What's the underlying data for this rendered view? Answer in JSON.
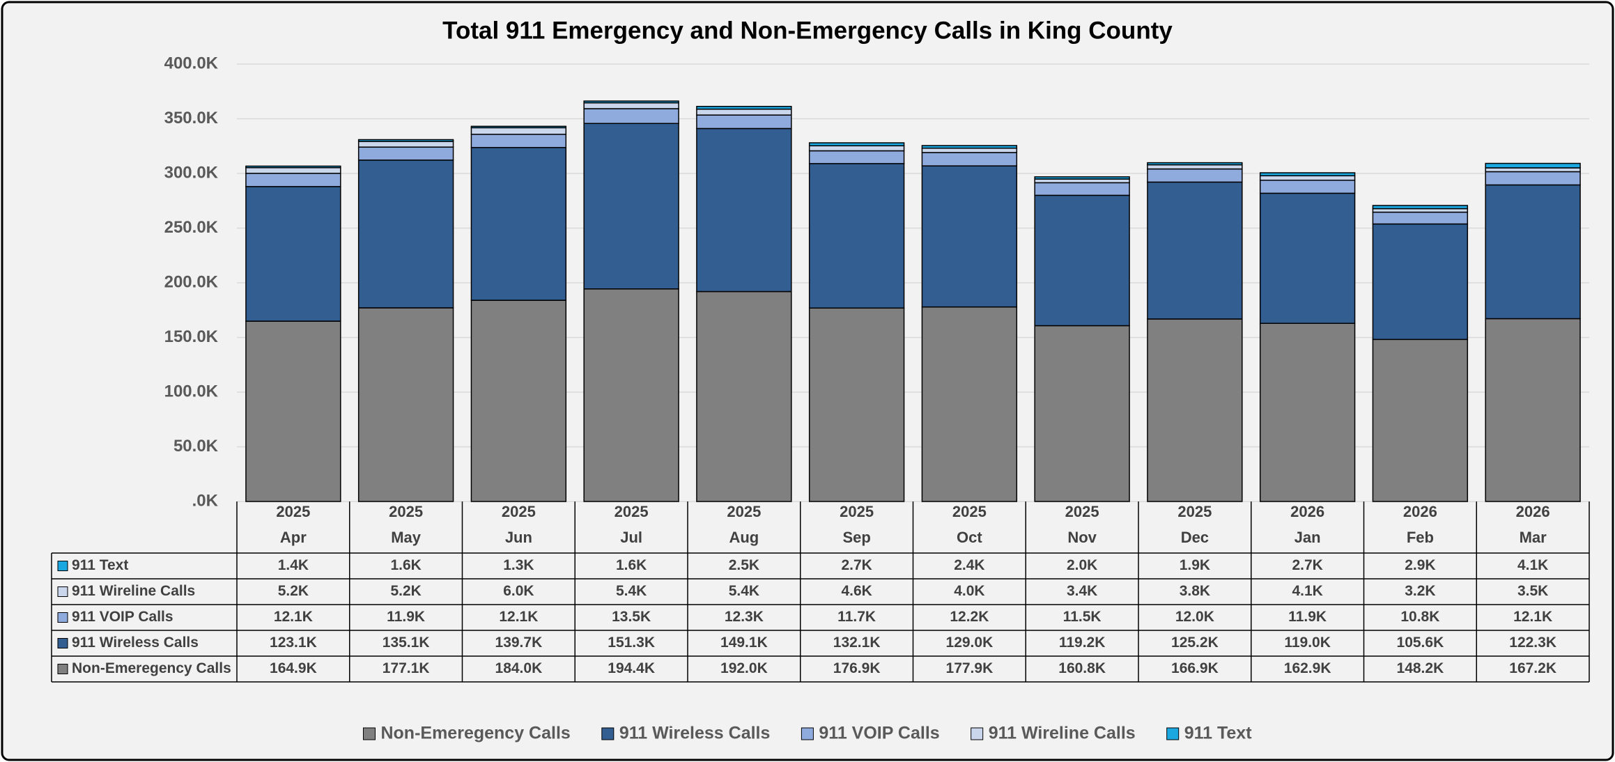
{
  "chart_data": {
    "type": "stacked_bar",
    "title": "Total 911 Emergency and Non-Emergency Calls in King County",
    "categories": [
      {
        "year": "2025",
        "month": "Apr"
      },
      {
        "year": "2025",
        "month": "May"
      },
      {
        "year": "2025",
        "month": "Jun"
      },
      {
        "year": "2025",
        "month": "Jul"
      },
      {
        "year": "2025",
        "month": "Aug"
      },
      {
        "year": "2025",
        "month": "Sep"
      },
      {
        "year": "2025",
        "month": "Oct"
      },
      {
        "year": "2025",
        "month": "Nov"
      },
      {
        "year": "2025",
        "month": "Dec"
      },
      {
        "year": "2026",
        "month": "Jan"
      },
      {
        "year": "2026",
        "month": "Feb"
      },
      {
        "year": "2026",
        "month": "Mar"
      }
    ],
    "series": [
      {
        "name": "Non-Emeregency Calls",
        "color": "#808080",
        "values": [
          164900,
          177100,
          184000,
          194400,
          192000,
          176900,
          177900,
          160800,
          166900,
          162900,
          148200,
          167200
        ],
        "value_labels": [
          "164.9K",
          "177.1K",
          "184.0K",
          "194.4K",
          "192.0K",
          "176.9K",
          "177.9K",
          "160.8K",
          "166.9K",
          "162.9K",
          "148.2K",
          "167.2K"
        ]
      },
      {
        "name": "911 Wireless Calls",
        "color": "#335e91",
        "values": [
          123100,
          135100,
          139700,
          151300,
          149100,
          132100,
          129000,
          119200,
          125200,
          119000,
          105600,
          122300
        ],
        "value_labels": [
          "123.1K",
          "135.1K",
          "139.7K",
          "151.3K",
          "149.1K",
          "132.1K",
          "129.0K",
          "119.2K",
          "125.2K",
          "119.0K",
          "105.6K",
          "122.3K"
        ]
      },
      {
        "name": "911 VOIP Calls",
        "color": "#8faadc",
        "values": [
          12100,
          11900,
          12100,
          13500,
          12300,
          11700,
          12200,
          11500,
          12000,
          11900,
          10800,
          12100
        ],
        "value_labels": [
          "12.1K",
          "11.9K",
          "12.1K",
          "13.5K",
          "12.3K",
          "11.7K",
          "12.2K",
          "11.5K",
          "12.0K",
          "11.9K",
          "10.8K",
          "12.1K"
        ]
      },
      {
        "name": "911 Wireline Calls",
        "color": "#c9d6ec",
        "values": [
          5200,
          5200,
          6000,
          5400,
          5400,
          4600,
          4000,
          3400,
          3800,
          4100,
          3200,
          3500
        ],
        "value_labels": [
          "5.2K",
          "5.2K",
          "6.0K",
          "5.4K",
          "5.4K",
          "4.6K",
          "4.0K",
          "3.4K",
          "3.8K",
          "4.1K",
          "3.2K",
          "3.5K"
        ]
      },
      {
        "name": "911 Text",
        "color": "#1ba7e0",
        "values": [
          1400,
          1600,
          1300,
          1600,
          2500,
          2700,
          2400,
          2000,
          1900,
          2700,
          2900,
          4100
        ],
        "value_labels": [
          "1.4K",
          "1.6K",
          "1.3K",
          "1.6K",
          "2.5K",
          "2.7K",
          "2.4K",
          "2.0K",
          "1.9K",
          "2.7K",
          "2.9K",
          "4.1K"
        ]
      }
    ],
    "ylim": [
      0,
      400000
    ],
    "yticks": [
      {
        "value": 0,
        "label": ".0K"
      },
      {
        "value": 50000,
        "label": "50.0K"
      },
      {
        "value": 100000,
        "label": "100.0K"
      },
      {
        "value": 150000,
        "label": "150.0K"
      },
      {
        "value": 200000,
        "label": "200.0K"
      },
      {
        "value": 250000,
        "label": "250.0K"
      },
      {
        "value": 300000,
        "label": "300.0K"
      },
      {
        "value": 350000,
        "label": "350.0K"
      },
      {
        "value": 400000,
        "label": "400.0K"
      }
    ],
    "grid": true
  }
}
